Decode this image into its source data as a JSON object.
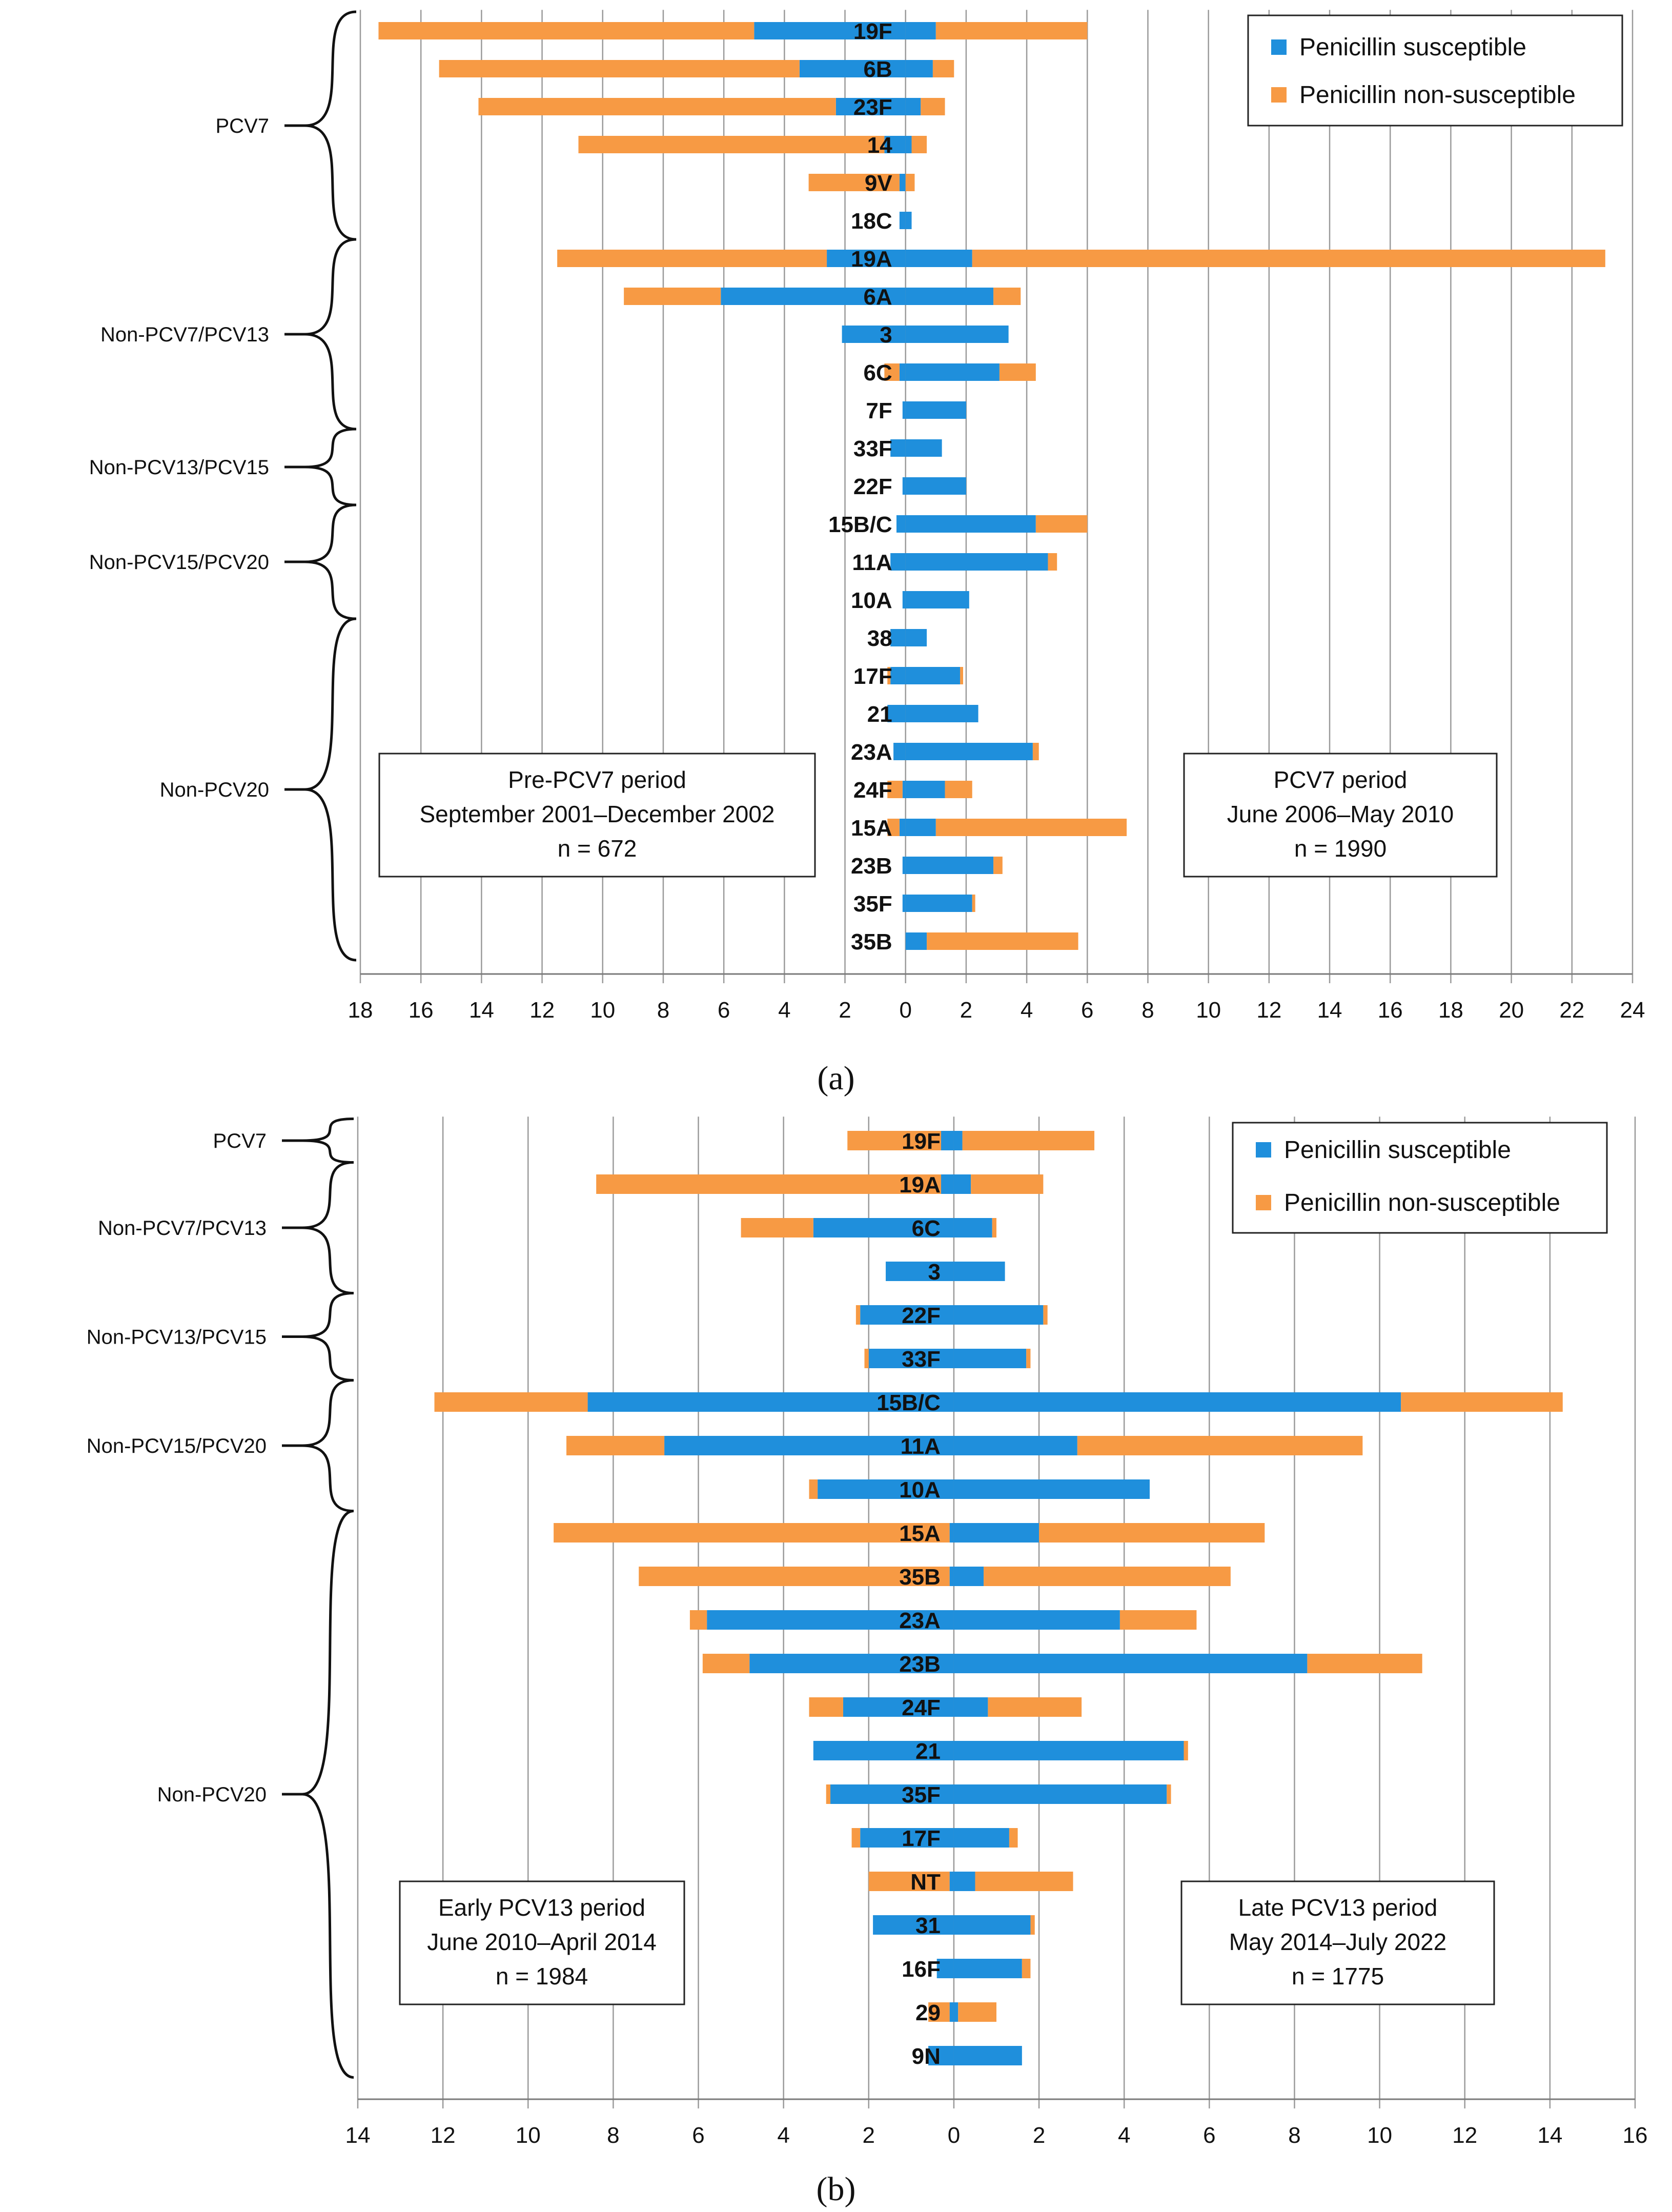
{
  "colors": {
    "susceptible": "#1f8fdc",
    "non_susceptible": "#f79a44"
  },
  "chart_data": [
    {
      "type": "bar",
      "orientation": "horizontal-butterfly",
      "panel_label": "(a)",
      "xlim": [
        -18,
        24
      ],
      "xticks": [
        -18,
        -16,
        -14,
        -12,
        -10,
        -8,
        -6,
        -4,
        -2,
        0,
        2,
        4,
        6,
        8,
        10,
        12,
        14,
        16,
        18,
        20,
        22,
        24
      ],
      "tick_labels": [
        "18",
        "16",
        "14",
        "12",
        "10",
        "8",
        "6",
        "4",
        "2",
        "0",
        "2",
        "4",
        "6",
        "8",
        "10",
        "12",
        "14",
        "16",
        "18",
        "20",
        "22",
        "24"
      ],
      "legend": [
        "Penicillin susceptible",
        "Penicillin non-susceptible"
      ],
      "left_period": {
        "line1": "Pre-PCV7 period",
        "line2": "September 2001–December 2002",
        "line3": "n = 672"
      },
      "right_period": {
        "line1": "PCV7 period",
        "line2": "June 2006–May 2010",
        "line3": "n = 1990"
      },
      "categories": [
        "19F",
        "6B",
        "23F",
        "14",
        "9V",
        "18C",
        "19A",
        "6A",
        "3",
        "6C",
        "7F",
        "33F",
        "22F",
        "15B/C",
        "11A",
        "10A",
        "38",
        "17F",
        "21",
        "23A",
        "24F",
        "15A",
        "23B",
        "35F",
        "35B"
      ],
      "left_susceptible": [
        5.0,
        3.5,
        2.3,
        0.7,
        0.2,
        0.2,
        2.6,
        6.1,
        2.1,
        0.2,
        0.1,
        0.5,
        0.1,
        0.3,
        0.5,
        0.1,
        0.5,
        0.5,
        0.6,
        0.4,
        0.1,
        0.2,
        0.1,
        0.1,
        0.0
      ],
      "left_non_susceptible": [
        12.4,
        11.9,
        11.8,
        10.1,
        3.0,
        0.0,
        8.9,
        3.2,
        0.0,
        0.5,
        0.0,
        0.0,
        0.0,
        0.0,
        0.0,
        0.0,
        0.0,
        0.1,
        0.0,
        0.0,
        0.5,
        0.4,
        0.0,
        0.0,
        0.0
      ],
      "right_susceptible": [
        1.0,
        0.9,
        0.5,
        0.2,
        0.0,
        0.2,
        2.2,
        2.9,
        3.4,
        3.1,
        2.0,
        1.2,
        2.0,
        4.3,
        4.7,
        2.1,
        0.7,
        1.8,
        2.4,
        4.2,
        1.3,
        1.0,
        2.9,
        2.2,
        0.7
      ],
      "right_non_susceptible": [
        5.0,
        0.7,
        0.8,
        0.5,
        0.3,
        0.0,
        20.9,
        0.9,
        0.0,
        1.2,
        0.0,
        0.0,
        0.0,
        1.7,
        0.3,
        0.0,
        0.0,
        0.1,
        0.0,
        0.2,
        0.9,
        6.3,
        0.3,
        0.1,
        5.0
      ],
      "groups": [
        {
          "label": "PCV7",
          "from": 0,
          "to": 5
        },
        {
          "label": "Non-PCV7/PCV13",
          "from": 6,
          "to": 10
        },
        {
          "label": "Non-PCV13/PCV15",
          "from": 11,
          "to": 12
        },
        {
          "label": "Non-PCV15/PCV20",
          "from": 13,
          "to": 15
        },
        {
          "label": "Non-PCV20",
          "from": 16,
          "to": 24
        }
      ]
    },
    {
      "type": "bar",
      "orientation": "horizontal-butterfly",
      "panel_label": "(b)",
      "xlim": [
        -14,
        16
      ],
      "xticks": [
        -14,
        -12,
        -10,
        -8,
        -6,
        -4,
        -2,
        0,
        2,
        4,
        6,
        8,
        10,
        12,
        14,
        16
      ],
      "tick_labels": [
        "14",
        "12",
        "10",
        "8",
        "6",
        "4",
        "2",
        "0",
        "2",
        "4",
        "6",
        "8",
        "10",
        "12",
        "14",
        "16"
      ],
      "legend": [
        "Penicillin susceptible",
        "Penicillin non-susceptible"
      ],
      "left_period": {
        "line1": "Early PCV13 period",
        "line2": "June 2010–April 2014",
        "line3": "n = 1984"
      },
      "right_period": {
        "line1": "Late PCV13 period",
        "line2": "May 2014–July 2022",
        "line3": "n = 1775"
      },
      "categories": [
        "19F",
        "19A",
        "6C",
        "3",
        "22F",
        "33F",
        "15B/C",
        "11A",
        "10A",
        "15A",
        "35B",
        "23A",
        "23B",
        "24F",
        "21",
        "35F",
        "17F",
        "NT",
        "31",
        "16F",
        "29",
        "9N"
      ],
      "left_susceptible": [
        0.3,
        0.3,
        3.3,
        1.6,
        2.2,
        2.0,
        8.6,
        6.8,
        3.2,
        0.1,
        0.1,
        5.8,
        4.8,
        2.6,
        3.3,
        2.9,
        2.2,
        0.1,
        1.9,
        0.4,
        0.1,
        0.6
      ],
      "left_non_susceptible": [
        2.2,
        8.1,
        1.7,
        0.0,
        0.1,
        0.1,
        3.6,
        2.3,
        0.2,
        9.3,
        7.3,
        0.4,
        1.1,
        0.8,
        0.0,
        0.1,
        0.2,
        1.9,
        0.0,
        0.0,
        0.5,
        0.0
      ],
      "right_susceptible": [
        0.2,
        0.4,
        0.9,
        1.2,
        2.1,
        1.7,
        10.5,
        2.9,
        4.6,
        2.0,
        0.7,
        3.9,
        8.3,
        0.8,
        5.4,
        5.0,
        1.3,
        0.5,
        1.8,
        1.6,
        0.1,
        1.6
      ],
      "right_non_susceptible": [
        3.1,
        1.7,
        0.1,
        0.0,
        0.1,
        0.1,
        3.8,
        6.7,
        0.0,
        5.3,
        5.8,
        1.8,
        2.7,
        2.2,
        0.1,
        0.1,
        0.2,
        2.3,
        0.1,
        0.2,
        0.9,
        0.0
      ],
      "groups": [
        {
          "label": "PCV7",
          "from": 0,
          "to": 0
        },
        {
          "label": "Non-PCV7/PCV13",
          "from": 1,
          "to": 3
        },
        {
          "label": "Non-PCV13/PCV15",
          "from": 4,
          "to": 5
        },
        {
          "label": "Non-PCV15/PCV20",
          "from": 6,
          "to": 8
        },
        {
          "label": "Non-PCV20",
          "from": 9,
          "to": 21
        }
      ]
    }
  ]
}
